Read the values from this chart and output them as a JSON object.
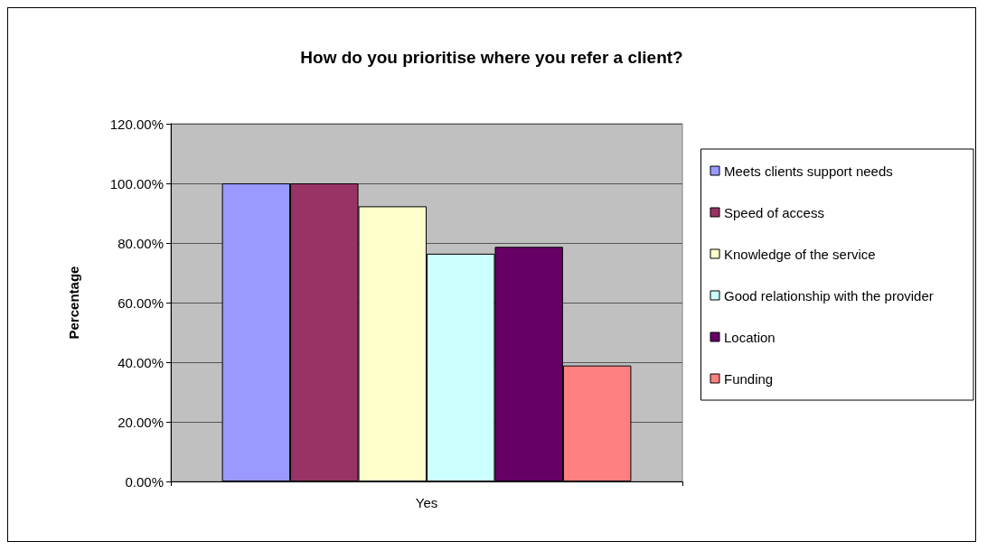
{
  "chart_data": {
    "type": "bar",
    "title": "How do you prioritise where you refer a client?",
    "ylabel": "Percentage",
    "categories": [
      "Yes"
    ],
    "series": [
      {
        "name": "Meets clients support needs",
        "color": "#9999ff",
        "values": [
          100
        ]
      },
      {
        "name": "Speed of access",
        "color": "#993366",
        "values": [
          100
        ]
      },
      {
        "name": "Knowledge of the service",
        "color": "#ffffcc",
        "values": [
          92.3
        ]
      },
      {
        "name": "Good relationship with the provider",
        "color": "#ccffff",
        "values": [
          76.4
        ]
      },
      {
        "name": "Location",
        "color": "#660066",
        "values": [
          78.7
        ]
      },
      {
        "name": "Funding",
        "color": "#ff8080",
        "values": [
          38.9
        ]
      }
    ],
    "ylim": [
      0,
      120
    ],
    "yticks": [
      {
        "value": 0,
        "label": "0.00%"
      },
      {
        "value": 20,
        "label": "20.00%"
      },
      {
        "value": 40,
        "label": "40.00%"
      },
      {
        "value": 60,
        "label": "60.00%"
      },
      {
        "value": 80,
        "label": "80.00%"
      },
      {
        "value": 100,
        "label": "100.00%"
      },
      {
        "value": 120,
        "label": "120.00%"
      }
    ],
    "grid": "y",
    "legend": "right"
  }
}
